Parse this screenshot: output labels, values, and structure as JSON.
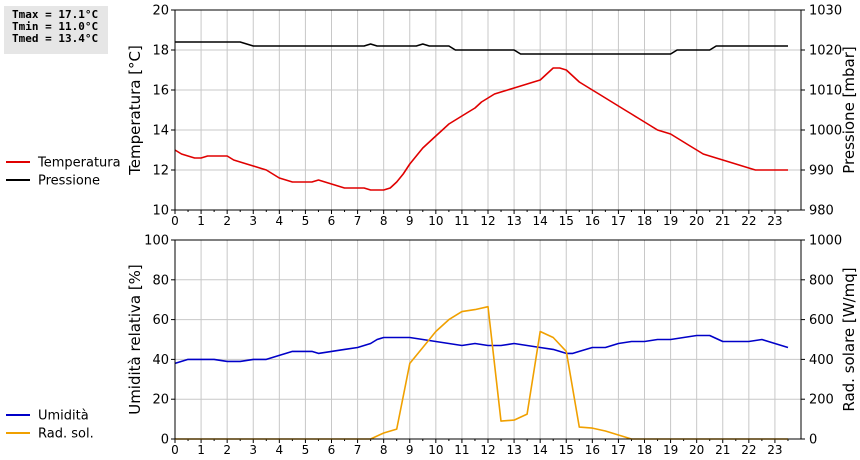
{
  "stats": {
    "tmax": "Tmax = 17.1°C",
    "tmin": "Tmin = 11.0°C",
    "tmed": "Tmed = 13.4°C"
  },
  "chart_data": [
    {
      "type": "line",
      "x_ticks": [
        "0",
        "1",
        "2",
        "3",
        "4",
        "5",
        "6",
        "7",
        "8",
        "9",
        "10",
        "11",
        "12",
        "13",
        "14",
        "15",
        "16",
        "17",
        "18",
        "19",
        "20",
        "21",
        "22",
        "23"
      ],
      "xlim": [
        0,
        24
      ],
      "ylabel": "Temperatura [°C]",
      "ylabel_right": "Pressione [mbar]",
      "ylim": [
        10,
        20
      ],
      "ylim_right": [
        980,
        1030
      ],
      "y_ticks": [
        "10",
        "12",
        "14",
        "16",
        "18",
        "20"
      ],
      "y_ticks_right": [
        "980",
        "990",
        "1000",
        "1010",
        "1020",
        "1030"
      ],
      "grid": true,
      "legend": "left",
      "series": [
        {
          "name": "Temperatura",
          "color": "#e00000",
          "axis": "left",
          "x": [
            0,
            0.25,
            0.5,
            0.75,
            1,
            1.25,
            1.5,
            1.75,
            2,
            2.25,
            2.5,
            2.75,
            3,
            3.25,
            3.5,
            3.75,
            4,
            4.25,
            4.5,
            4.75,
            5,
            5.25,
            5.5,
            5.75,
            6,
            6.25,
            6.5,
            6.75,
            7,
            7.25,
            7.5,
            7.75,
            8,
            8.25,
            8.5,
            8.75,
            9,
            9.25,
            9.5,
            9.75,
            10,
            10.25,
            10.5,
            10.75,
            11,
            11.25,
            11.5,
            11.75,
            12,
            12.25,
            12.5,
            12.75,
            13,
            13.25,
            13.5,
            13.75,
            14,
            14.25,
            14.5,
            14.75,
            15,
            15.25,
            15.5,
            15.75,
            16,
            16.25,
            16.5,
            16.75,
            17,
            17.25,
            17.5,
            17.75,
            18,
            18.25,
            18.5,
            18.75,
            19,
            19.25,
            19.5,
            19.75,
            20,
            20.25,
            20.5,
            20.75,
            21,
            21.25,
            21.5,
            21.75,
            22,
            22.25,
            22.5,
            22.75,
            23,
            23.25,
            23.5
          ],
          "values": [
            13.0,
            12.8,
            12.7,
            12.6,
            12.6,
            12.7,
            12.7,
            12.7,
            12.7,
            12.5,
            12.4,
            12.3,
            12.2,
            12.1,
            12.0,
            11.8,
            11.6,
            11.5,
            11.4,
            11.4,
            11.4,
            11.4,
            11.5,
            11.4,
            11.3,
            11.2,
            11.1,
            11.1,
            11.1,
            11.1,
            11.0,
            11.0,
            11.0,
            11.1,
            11.4,
            11.8,
            12.3,
            12.7,
            13.1,
            13.4,
            13.7,
            14.0,
            14.3,
            14.5,
            14.7,
            14.9,
            15.1,
            15.4,
            15.6,
            15.8,
            15.9,
            16.0,
            16.1,
            16.2,
            16.3,
            16.4,
            16.5,
            16.8,
            17.1,
            17.1,
            17.0,
            16.7,
            16.4,
            16.2,
            16.0,
            15.8,
            15.6,
            15.4,
            15.2,
            15.0,
            14.8,
            14.6,
            14.4,
            14.2,
            14.0,
            13.9,
            13.8,
            13.6,
            13.4,
            13.2,
            13.0,
            12.8,
            12.7,
            12.6,
            12.5,
            12.4,
            12.3,
            12.2,
            12.1,
            12.0,
            12.0,
            12.0,
            12.0,
            12.0,
            12.0
          ]
        },
        {
          "name": "Pressione",
          "color": "#000000",
          "axis": "right",
          "x": [
            0,
            2.5,
            2.75,
            3,
            7.25,
            7.5,
            7.75,
            9.25,
            9.5,
            9.75,
            10.5,
            10.75,
            13,
            13.25,
            19,
            19.25,
            20.5,
            20.75,
            23.5
          ],
          "values": [
            1022,
            1022,
            1021.5,
            1021,
            1021,
            1021.5,
            1021,
            1021,
            1021.5,
            1021,
            1021,
            1020,
            1020,
            1019,
            1019,
            1020,
            1020,
            1021,
            1021
          ]
        }
      ]
    },
    {
      "type": "line",
      "x_ticks": [
        "0",
        "1",
        "2",
        "3",
        "4",
        "5",
        "6",
        "7",
        "8",
        "9",
        "10",
        "11",
        "12",
        "13",
        "14",
        "15",
        "16",
        "17",
        "18",
        "19",
        "20",
        "21",
        "22",
        "23"
      ],
      "xlim": [
        0,
        24
      ],
      "ylabel": "Umidità relativa [%]",
      "ylabel_right": "Rad. solare [W/mq]",
      "ylim": [
        0,
        100
      ],
      "ylim_right": [
        0,
        1000
      ],
      "y_ticks": [
        "0",
        "20",
        "40",
        "60",
        "80",
        "100"
      ],
      "y_ticks_right": [
        "0",
        "200",
        "400",
        "600",
        "800",
        "1000"
      ],
      "grid": true,
      "legend": "left",
      "series": [
        {
          "name": "Umidità",
          "color": "#0000c8",
          "axis": "left",
          "x": [
            0,
            0.25,
            0.5,
            1,
            1.5,
            2,
            2.5,
            3,
            3.5,
            4,
            4.25,
            4.5,
            5,
            5.25,
            5.5,
            6,
            6.5,
            7,
            7.5,
            7.75,
            8,
            8.5,
            9,
            9.5,
            10,
            10.5,
            11,
            11.5,
            12,
            12.5,
            13,
            13.5,
            14,
            14.5,
            15,
            15.25,
            15.5,
            16,
            16.5,
            17,
            17.5,
            18,
            18.5,
            19,
            19.5,
            20,
            20.5,
            21,
            21.5,
            22,
            22.5,
            23,
            23.5
          ],
          "values": [
            38,
            39,
            40,
            40,
            40,
            39,
            39,
            40,
            40,
            42,
            43,
            44,
            44,
            44,
            43,
            44,
            45,
            46,
            48,
            50,
            51,
            51,
            51,
            50,
            49,
            48,
            47,
            48,
            47,
            47,
            48,
            47,
            46,
            45,
            43,
            43,
            44,
            46,
            46,
            48,
            49,
            49,
            50,
            50,
            51,
            52,
            52,
            49,
            49,
            49,
            50,
            48,
            46
          ]
        },
        {
          "name": "Rad. sol.",
          "color": "#f0a000",
          "axis": "right",
          "x": [
            0,
            6.75,
            7,
            7.5,
            8,
            8.5,
            9,
            9.5,
            10,
            10.5,
            11,
            11.5,
            12,
            12.5,
            13,
            13.5,
            14,
            14.5,
            15,
            15.5,
            16,
            16.5,
            17,
            17.5,
            23.5
          ],
          "values": [
            0,
            0,
            0,
            0,
            30,
            50,
            380,
            460,
            540,
            600,
            640,
            650,
            665,
            90,
            95,
            125,
            540,
            510,
            440,
            60,
            55,
            40,
            20,
            0,
            0
          ]
        }
      ]
    }
  ]
}
